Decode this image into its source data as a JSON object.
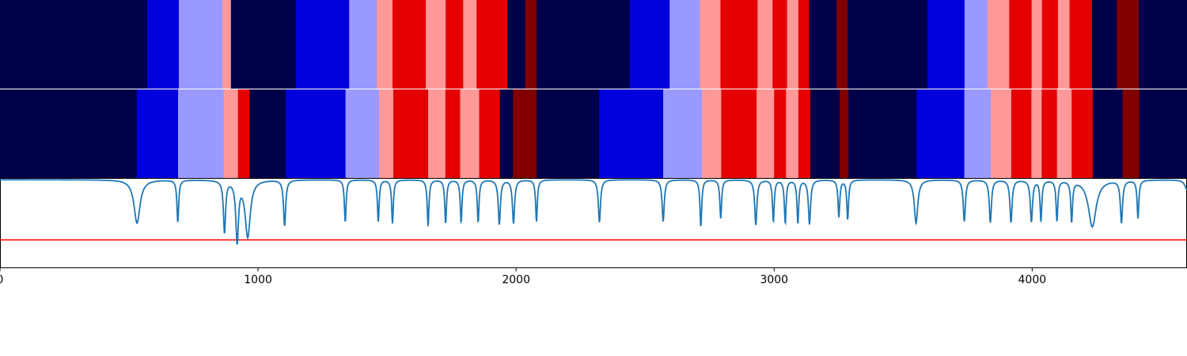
{
  "chart_data": {
    "type": "heatmap",
    "xlim": [
      0,
      4600
    ],
    "xticks": [
      0,
      1000,
      2000,
      3000,
      4000
    ],
    "tick_labels": [
      "0",
      "1000",
      "2000",
      "3000",
      "4000"
    ],
    "palette": {
      "0": "#00004a",
      "1": "#0000dd",
      "2": "#9999ff",
      "3": "#ff9999",
      "4": "#e50000",
      "5": "#800000"
    },
    "rows": [
      [
        [
          0,
          570,
          0
        ],
        [
          570,
          693,
          1
        ],
        [
          693,
          862,
          2
        ],
        [
          862,
          895,
          3
        ],
        [
          895,
          1147,
          0
        ],
        [
          1147,
          1353,
          1
        ],
        [
          1353,
          1460,
          2
        ],
        [
          1460,
          1521,
          3
        ],
        [
          1521,
          1650,
          4
        ],
        [
          1650,
          1727,
          3
        ],
        [
          1727,
          1795,
          4
        ],
        [
          1795,
          1847,
          3
        ],
        [
          1847,
          1966,
          4
        ],
        [
          1966,
          2035,
          0
        ],
        [
          2035,
          2080,
          5
        ],
        [
          2080,
          2440,
          0
        ],
        [
          2440,
          2595,
          1
        ],
        [
          2595,
          2712,
          2
        ],
        [
          2712,
          2792,
          3
        ],
        [
          2792,
          2936,
          4
        ],
        [
          2936,
          2994,
          3
        ],
        [
          2994,
          3050,
          4
        ],
        [
          3050,
          3094,
          3
        ],
        [
          3094,
          3135,
          4
        ],
        [
          3135,
          3242,
          0
        ],
        [
          3242,
          3285,
          5
        ],
        [
          3285,
          3594,
          0
        ],
        [
          3594,
          3738,
          1
        ],
        [
          3738,
          3827,
          2
        ],
        [
          3827,
          3911,
          3
        ],
        [
          3911,
          3998,
          4
        ],
        [
          3998,
          4038,
          3
        ],
        [
          4038,
          4100,
          4
        ],
        [
          4100,
          4145,
          3
        ],
        [
          4145,
          4232,
          4
        ],
        [
          4232,
          4328,
          0
        ],
        [
          4328,
          4413,
          5
        ],
        [
          4413,
          4600,
          0
        ]
      ],
      [
        [
          0,
          530,
          0
        ],
        [
          530,
          690,
          1
        ],
        [
          690,
          867,
          2
        ],
        [
          867,
          922,
          3
        ],
        [
          922,
          967,
          4
        ],
        [
          967,
          1107,
          0
        ],
        [
          1107,
          1339,
          1
        ],
        [
          1339,
          1469,
          2
        ],
        [
          1469,
          1524,
          3
        ],
        [
          1524,
          1659,
          4
        ],
        [
          1659,
          1726,
          3
        ],
        [
          1726,
          1783,
          4
        ],
        [
          1783,
          1857,
          3
        ],
        [
          1857,
          1937,
          4
        ],
        [
          1937,
          1988,
          0
        ],
        [
          1988,
          2080,
          5
        ],
        [
          2080,
          2322,
          0
        ],
        [
          2322,
          2570,
          1
        ],
        [
          2570,
          2720,
          2
        ],
        [
          2720,
          2795,
          3
        ],
        [
          2795,
          2932,
          4
        ],
        [
          2932,
          3000,
          3
        ],
        [
          3000,
          3046,
          4
        ],
        [
          3046,
          3094,
          3
        ],
        [
          3094,
          3140,
          4
        ],
        [
          3140,
          3254,
          0
        ],
        [
          3254,
          3288,
          5
        ],
        [
          3288,
          3552,
          0
        ],
        [
          3552,
          3737,
          1
        ],
        [
          3737,
          3840,
          2
        ],
        [
          3840,
          3919,
          3
        ],
        [
          3919,
          3997,
          4
        ],
        [
          3997,
          4037,
          3
        ],
        [
          4037,
          4096,
          4
        ],
        [
          4096,
          4153,
          3
        ],
        [
          4153,
          4235,
          4
        ],
        [
          4235,
          4350,
          0
        ],
        [
          4350,
          4415,
          5
        ],
        [
          4415,
          4600,
          0
        ]
      ]
    ],
    "line": {
      "color": "#1f77b4",
      "ylim": [
        0,
        1
      ],
      "baseline": 0.99,
      "dips": [
        [
          531,
          0.5,
          14
        ],
        [
          689,
          0.51,
          4
        ],
        [
          870,
          0.4,
          5
        ],
        [
          919,
          0.31,
          6
        ],
        [
          960,
          0.35,
          12
        ],
        [
          1103,
          0.47,
          5
        ],
        [
          1338,
          0.51,
          4
        ],
        [
          1466,
          0.52,
          4
        ],
        [
          1521,
          0.5,
          4
        ],
        [
          1659,
          0.47,
          4
        ],
        [
          1727,
          0.5,
          4
        ],
        [
          1787,
          0.51,
          4
        ],
        [
          1853,
          0.51,
          4
        ],
        [
          1935,
          0.49,
          5
        ],
        [
          1990,
          0.5,
          5
        ],
        [
          2079,
          0.52,
          4
        ],
        [
          2323,
          0.51,
          5
        ],
        [
          2570,
          0.52,
          5
        ],
        [
          2716,
          0.46,
          4
        ],
        [
          2793,
          0.55,
          4
        ],
        [
          2929,
          0.48,
          5
        ],
        [
          2997,
          0.52,
          4
        ],
        [
          3043,
          0.5,
          4
        ],
        [
          3092,
          0.5,
          4
        ],
        [
          3137,
          0.49,
          5
        ],
        [
          3251,
          0.57,
          4
        ],
        [
          3285,
          0.54,
          4
        ],
        [
          3550,
          0.5,
          8
        ],
        [
          3737,
          0.52,
          5
        ],
        [
          3838,
          0.51,
          5
        ],
        [
          3918,
          0.51,
          5
        ],
        [
          3997,
          0.52,
          5
        ],
        [
          4034,
          0.53,
          4
        ],
        [
          4096,
          0.53,
          4
        ],
        [
          4153,
          0.53,
          4
        ],
        [
          4233,
          0.46,
          18
        ],
        [
          4346,
          0.51,
          5
        ],
        [
          4410,
          0.56,
          4
        ],
        [
          4600,
          0.88,
          10
        ]
      ]
    },
    "threshold": {
      "value": 0.31,
      "color": "#ff0000"
    }
  }
}
